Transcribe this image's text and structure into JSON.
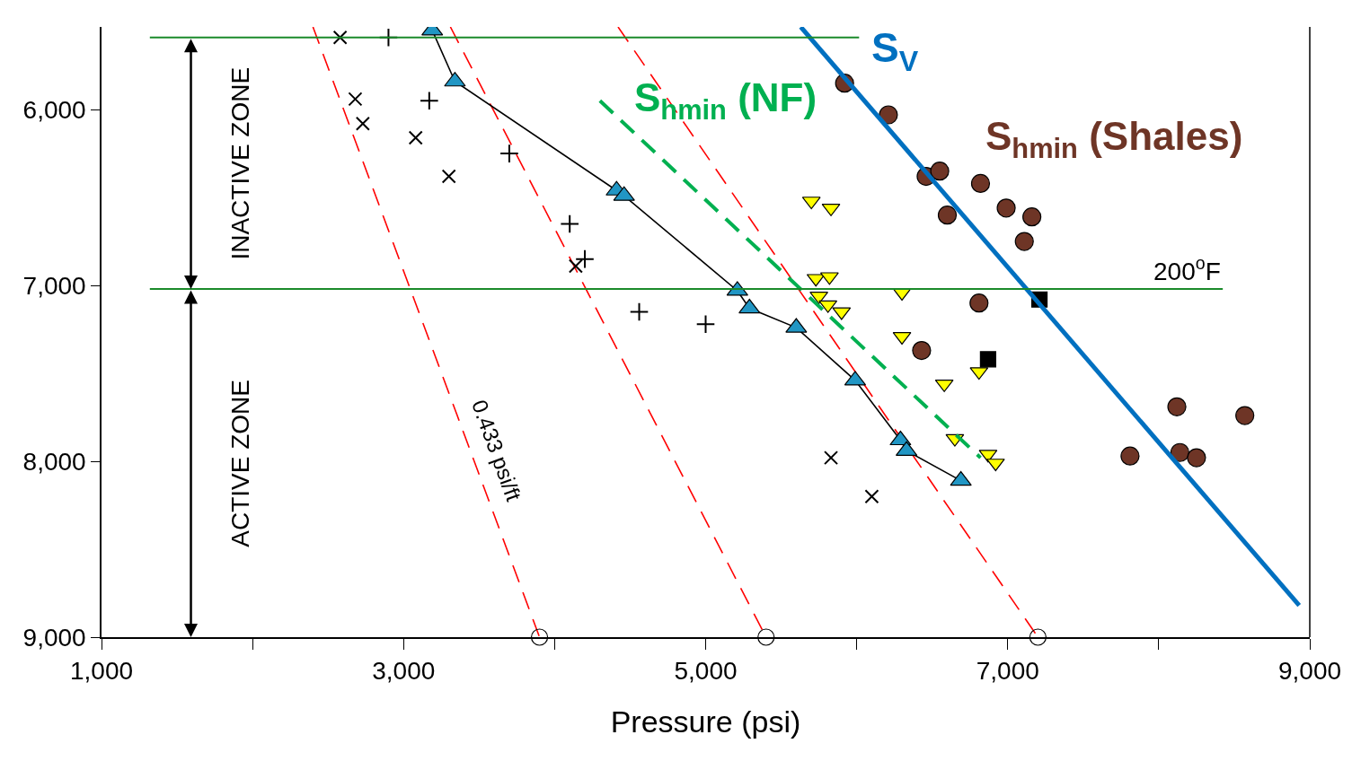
{
  "chart_data": {
    "type": "scatter",
    "xlabel": "Pressure (psi)",
    "xlim": [
      1000,
      9000
    ],
    "ylim": [
      9000,
      5530
    ],
    "xticks": [
      {
        "value": 1000,
        "label": "1,000"
      },
      {
        "value": 2000,
        "label": null
      },
      {
        "value": 3000,
        "label": "3,000"
      },
      {
        "value": 4000,
        "label": null
      },
      {
        "value": 5000,
        "label": "5,000"
      },
      {
        "value": 6000,
        "label": null
      },
      {
        "value": 7000,
        "label": "7,000"
      },
      {
        "value": 8000,
        "label": null
      },
      {
        "value": 9000,
        "label": "9,000"
      }
    ],
    "yticks": [
      {
        "value": 6000,
        "label": "6,000"
      },
      {
        "value": 7000,
        "label": "7,000"
      },
      {
        "value": 8000,
        "label": "8,000"
      },
      {
        "value": 9000,
        "label": "9,000"
      }
    ],
    "ref_lines": [
      {
        "axis": "y",
        "value": 5590,
        "label": null,
        "color": "#1a8a2a"
      },
      {
        "axis": "y",
        "value": 7020,
        "label": "200$^{o}$F",
        "color": "#1a8a2a"
      }
    ],
    "annotations": [
      "INACTIVE ZONE",
      "ACTIVE ZONE",
      {
        "text": "0.433 psi/ft",
        "x": 3440,
        "y": 7940
      }
    ],
    "series": [
      {
        "type": "line",
        "color": "#ff0000",
        "line_style": "dashed",
        "marker": "none",
        "x": [
          2400,
          3900
        ],
        "values": [
          5530,
          9000
        ]
      },
      {
        "type": "line",
        "color": "#ff0000",
        "line_style": "dashed",
        "marker": "none",
        "x": [
          3310,
          5400
        ],
        "values": [
          5530,
          9000
        ]
      },
      {
        "type": "line",
        "color": "#ff0000",
        "line_style": "dashed",
        "marker": "none",
        "x": [
          4420,
          7200
        ],
        "values": [
          5530,
          9000
        ]
      },
      {
        "type": "scatter",
        "color": "#000000",
        "marker": "circle-open",
        "x": [
          3900,
          5400,
          7200
        ],
        "values": [
          9000,
          9000,
          9000
        ]
      },
      {
        "type": "scatter",
        "color": "#000000",
        "marker": "x",
        "x": [
          2580,
          2680,
          2730,
          3080,
          3300,
          4140,
          5830,
          6100
        ],
        "values": [
          5590,
          5940,
          6080,
          6160,
          6380,
          6890,
          7980,
          8200
        ]
      },
      {
        "type": "scatter",
        "color": "#000000",
        "marker": "cross",
        "x": [
          2900,
          3170,
          3700,
          4100,
          4200,
          4560,
          5000
        ],
        "values": [
          5590,
          5950,
          6250,
          6650,
          6850,
          7150,
          7220
        ]
      },
      {
        "type": "line",
        "color": "#2196c4",
        "marker": "triangle",
        "x": [
          3190,
          3340,
          4410,
          4460,
          5210,
          5290,
          5600,
          5990,
          6290,
          6330,
          6690
        ],
        "values": [
          5550,
          5840,
          6460,
          6490,
          7030,
          7130,
          7240,
          7540,
          7880,
          7940,
          8110
        ]
      },
      {
        "type": "scatter",
        "color": "#ffff00",
        "marker": "triangle-down",
        "x": [
          5700,
          5830,
          5730,
          5820,
          5750,
          5810,
          5900,
          6300,
          6300,
          6580,
          6810,
          6650,
          6870,
          6920
        ],
        "values": [
          6520,
          6560,
          6960,
          6950,
          7060,
          7110,
          7150,
          7040,
          7290,
          7560,
          7490,
          7870,
          7960,
          8010
        ]
      },
      {
        "name": "S$_{hmin}$ (Shales)",
        "type": "scatter",
        "color": "#6e3526",
        "marker": "circle",
        "x": [
          5920,
          6210,
          6460,
          6550,
          6820,
          6600,
          6990,
          7160,
          7110,
          6810,
          6430,
          8120,
          8570,
          7810,
          8140,
          8250
        ],
        "values": [
          5850,
          6030,
          6380,
          6350,
          6420,
          6600,
          6560,
          6610,
          6750,
          7100,
          7370,
          7690,
          7740,
          7970,
          7950,
          7980
        ]
      },
      {
        "type": "scatter",
        "color": "#000000",
        "marker": "square",
        "x": [
          7210,
          6870
        ],
        "values": [
          7080,
          7420
        ]
      },
      {
        "name": "S$_{hmin}$ (NF)",
        "type": "line",
        "color": "#00b050",
        "line_style": "dashed",
        "marker": "none",
        "x": [
          4300,
          6820
        ],
        "values": [
          5950,
          7980
        ]
      },
      {
        "name": "S$_{V}$",
        "type": "line",
        "color": "#0070c0",
        "line_style": "solid",
        "marker": "none",
        "x": [
          5630,
          8930
        ],
        "values": [
          5530,
          8820
        ]
      }
    ]
  }
}
